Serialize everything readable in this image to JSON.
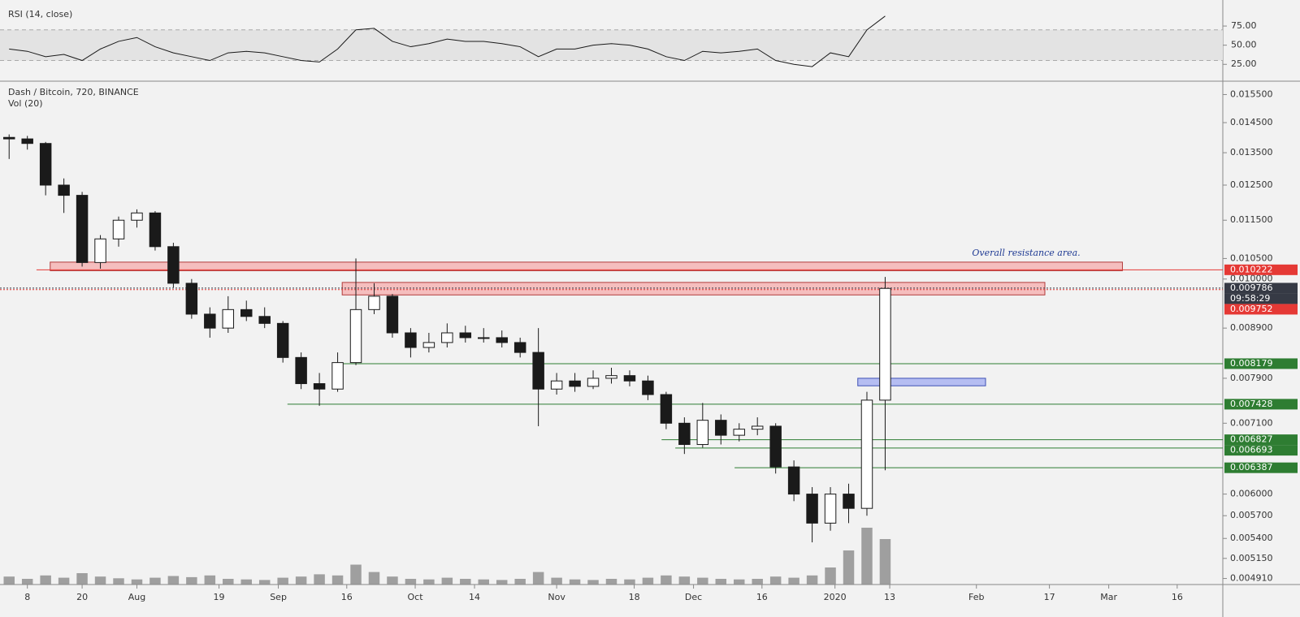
{
  "chart_data": {
    "type": "candlestick",
    "title": "Dash / Bitcoin, 720, BINANCE",
    "x": [
      "2019-07-04",
      "2019-07-08",
      "2019-07-12",
      "2019-07-16",
      "2019-07-20",
      "2019-07-24",
      "2019-07-28",
      "2019-08-01",
      "2019-08-05",
      "2019-08-09",
      "2019-08-13",
      "2019-08-17",
      "2019-08-21",
      "2019-08-25",
      "2019-08-29",
      "2019-09-02",
      "2019-09-06",
      "2019-09-10",
      "2019-09-14",
      "2019-09-18",
      "2019-09-22",
      "2019-09-26",
      "2019-09-30",
      "2019-10-04",
      "2019-10-08",
      "2019-10-12",
      "2019-10-16",
      "2019-10-20",
      "2019-10-24",
      "2019-10-28",
      "2019-11-01",
      "2019-11-05",
      "2019-11-09",
      "2019-11-13",
      "2019-11-17",
      "2019-11-21",
      "2019-11-25",
      "2019-11-29",
      "2019-12-03",
      "2019-12-07",
      "2019-12-11",
      "2019-12-15",
      "2019-12-19",
      "2019-12-23",
      "2019-12-27",
      "2019-12-31",
      "2020-01-04",
      "2020-01-08",
      "2020-01-12"
    ],
    "open": [
      0.014,
      0.01395,
      0.0138,
      0.0125,
      0.0122,
      0.0104,
      0.011,
      0.0115,
      0.0117,
      0.0108,
      0.0099,
      0.0092,
      0.0089,
      0.0093,
      0.00915,
      0.009,
      0.0083,
      0.0078,
      0.0077,
      0.0082,
      0.0093,
      0.0096,
      0.0088,
      0.0085,
      0.0086,
      0.0088,
      0.0087,
      0.0087,
      0.0086,
      0.0084,
      0.0077,
      0.00785,
      0.00775,
      0.0079,
      0.00795,
      0.00785,
      0.0076,
      0.0071,
      0.00675,
      0.00715,
      0.0069,
      0.007,
      0.00705,
      0.0064,
      0.006,
      0.0056,
      0.006,
      0.0058,
      0.0075
    ],
    "high": [
      0.0141,
      0.01405,
      0.01385,
      0.0127,
      0.0123,
      0.0111,
      0.0116,
      0.0118,
      0.01175,
      0.0109,
      0.01,
      0.00935,
      0.0096,
      0.0095,
      0.00935,
      0.00905,
      0.0084,
      0.008,
      0.0084,
      0.0105,
      0.0099,
      0.00965,
      0.0089,
      0.0088,
      0.009,
      0.00895,
      0.0089,
      0.00885,
      0.0087,
      0.0089,
      0.008,
      0.008,
      0.00805,
      0.0081,
      0.00805,
      0.00795,
      0.00765,
      0.0072,
      0.00745,
      0.00725,
      0.0071,
      0.0072,
      0.0071,
      0.0065,
      0.0061,
      0.0061,
      0.00615,
      0.00765,
      0.01005
    ],
    "low": [
      0.0133,
      0.0136,
      0.0122,
      0.0117,
      0.0103,
      0.01025,
      0.0108,
      0.0113,
      0.0107,
      0.0098,
      0.0091,
      0.0087,
      0.0088,
      0.00905,
      0.0089,
      0.0082,
      0.0077,
      0.0074,
      0.00765,
      0.00815,
      0.0092,
      0.0087,
      0.0083,
      0.0084,
      0.0085,
      0.0086,
      0.0086,
      0.0085,
      0.0083,
      0.00705,
      0.0076,
      0.00765,
      0.0077,
      0.0078,
      0.00775,
      0.0075,
      0.007,
      0.0066,
      0.0067,
      0.00675,
      0.0068,
      0.0069,
      0.0063,
      0.0059,
      0.00535,
      0.0055,
      0.0056,
      0.0057,
      0.00635
    ],
    "close": [
      0.01395,
      0.0138,
      0.0125,
      0.0122,
      0.0104,
      0.011,
      0.0115,
      0.0117,
      0.0108,
      0.0099,
      0.0092,
      0.0089,
      0.0093,
      0.00915,
      0.009,
      0.0083,
      0.0078,
      0.0077,
      0.0082,
      0.0093,
      0.0096,
      0.0088,
      0.0085,
      0.0086,
      0.0088,
      0.0087,
      0.0087,
      0.0086,
      0.0084,
      0.0077,
      0.00785,
      0.00775,
      0.0079,
      0.00795,
      0.00785,
      0.0076,
      0.0071,
      0.00675,
      0.00715,
      0.0069,
      0.007,
      0.00705,
      0.0064,
      0.006,
      0.0056,
      0.006,
      0.0058,
      0.0075,
      0.00978
    ],
    "up_color": "#ffffff",
    "down_color": "#1a1a1a",
    "wick_color": "#1a1a1a",
    "log_scale": true,
    "grid": false,
    "xlim": [
      "2019-07-02",
      "2020-03-26"
    ],
    "xticks": [
      {
        "value": "2019-07-08",
        "label": "8"
      },
      {
        "value": "2019-07-20",
        "label": "20"
      },
      {
        "value": "2019-08-01",
        "label": "Aug"
      },
      {
        "value": "2019-08-19",
        "label": "19"
      },
      {
        "value": "2019-09-01",
        "label": "Sep"
      },
      {
        "value": "2019-09-16",
        "label": "16"
      },
      {
        "value": "2019-10-01",
        "label": "Oct"
      },
      {
        "value": "2019-10-14",
        "label": "14"
      },
      {
        "value": "2019-11-01",
        "label": "Nov"
      },
      {
        "value": "2019-11-18",
        "label": "18"
      },
      {
        "value": "2019-12-01",
        "label": "Dec"
      },
      {
        "value": "2019-12-16",
        "label": "16"
      },
      {
        "value": "2020-01-01",
        "label": "2020"
      },
      {
        "value": "2020-01-13",
        "label": "13"
      },
      {
        "value": "2020-02-01",
        "label": "Feb"
      },
      {
        "value": "2020-02-17",
        "label": "17"
      },
      {
        "value": "2020-03-01",
        "label": "Mar"
      },
      {
        "value": "2020-03-16",
        "label": "16"
      }
    ],
    "ylim": [
      0.00484,
      0.016
    ],
    "yticks": [
      {
        "value": 0.0155,
        "label": "0.015500"
      },
      {
        "value": 0.0145,
        "label": "0.014500"
      },
      {
        "value": 0.0135,
        "label": "0.013500"
      },
      {
        "value": 0.0125,
        "label": "0.012500"
      },
      {
        "value": 0.0115,
        "label": "0.011500"
      },
      {
        "value": 0.0105,
        "label": "0.010500"
      },
      {
        "value": 0.01,
        "label": "0.010000"
      },
      {
        "value": 0.0089,
        "label": "0.008900"
      },
      {
        "value": 0.0079,
        "label": "0.007900"
      },
      {
        "value": 0.0071,
        "label": "0.007100"
      },
      {
        "value": 0.006,
        "label": "0.006000"
      },
      {
        "value": 0.0057,
        "label": "0.005700"
      },
      {
        "value": 0.0054,
        "label": "0.005400"
      },
      {
        "value": 0.00515,
        "label": "0.005150"
      },
      {
        "value": 0.00491,
        "label": "0.004910"
      }
    ],
    "volume": {
      "name": "Vol (20)",
      "color": "#8a8a8a",
      "values": [
        14,
        10,
        16,
        12,
        20,
        14,
        11,
        9,
        12,
        15,
        13,
        16,
        10,
        9,
        8,
        12,
        14,
        18,
        16,
        35,
        22,
        14,
        10,
        9,
        12,
        10,
        9,
        8,
        10,
        22,
        12,
        9,
        8,
        10,
        9,
        12,
        16,
        14,
        12,
        10,
        9,
        10,
        14,
        12,
        16,
        30,
        60,
        100,
        80
      ]
    },
    "rsi": {
      "name": "RSI (14, close)",
      "color": "#1a1a1a",
      "ylim": [
        3,
        109
      ],
      "yticks": [
        {
          "value": 25,
          "label": "25.00"
        },
        {
          "value": 50,
          "label": "50.00"
        },
        {
          "value": 75,
          "label": "75.00"
        }
      ],
      "band": [
        30,
        70
      ],
      "band_color": "#e3e3e3",
      "values": [
        45,
        42,
        35,
        38,
        30,
        45,
        55,
        60,
        48,
        40,
        35,
        30,
        40,
        42,
        40,
        35,
        30,
        28,
        45,
        70,
        72,
        55,
        48,
        52,
        58,
        55,
        55,
        52,
        48,
        35,
        45,
        45,
        50,
        52,
        50,
        45,
        35,
        30,
        42,
        40,
        42,
        45,
        30,
        25,
        22,
        40,
        35,
        70,
        88
      ]
    },
    "levels": [
      {
        "value": 0.010222,
        "color": "#e53935",
        "style": "solid",
        "from": "2019-07-10"
      },
      {
        "value": 0.009786,
        "color": "#363a45",
        "style": "dotted",
        "countdown": "09:58:29"
      },
      {
        "value": 0.009752,
        "color": "#e53935",
        "style": "dotted"
      },
      {
        "value": 0.008179,
        "color": "#2e7d32",
        "style": "solid",
        "from": "2019-09-14"
      },
      {
        "value": 0.007428,
        "color": "#2e7d32",
        "style": "solid",
        "from": "2019-09-03"
      },
      {
        "value": 0.006827,
        "color": "#2e7d32",
        "style": "solid",
        "from": "2019-11-24"
      },
      {
        "value": 0.006693,
        "color": "#2e7d32",
        "style": "solid",
        "from": "2019-11-27"
      },
      {
        "value": 0.006387,
        "color": "#2e7d32",
        "style": "solid",
        "from": "2019-12-10"
      }
    ],
    "zones": [
      {
        "from": "2019-07-13",
        "to": "2020-03-04",
        "low": 0.0102,
        "high": 0.01041,
        "color": "#f6b5b5",
        "border": "#b23a3a"
      },
      {
        "from": "2019-09-15",
        "to": "2020-02-16",
        "low": 0.00963,
        "high": 0.00992,
        "color": "#f6b5b5",
        "border": "#b23a3a"
      },
      {
        "from": "2020-01-06",
        "to": "2020-02-03",
        "low": 0.00776,
        "high": 0.0079,
        "color": "#aab4f2",
        "border": "#3f51b5"
      }
    ],
    "annotation": "Overall resistance area."
  }
}
